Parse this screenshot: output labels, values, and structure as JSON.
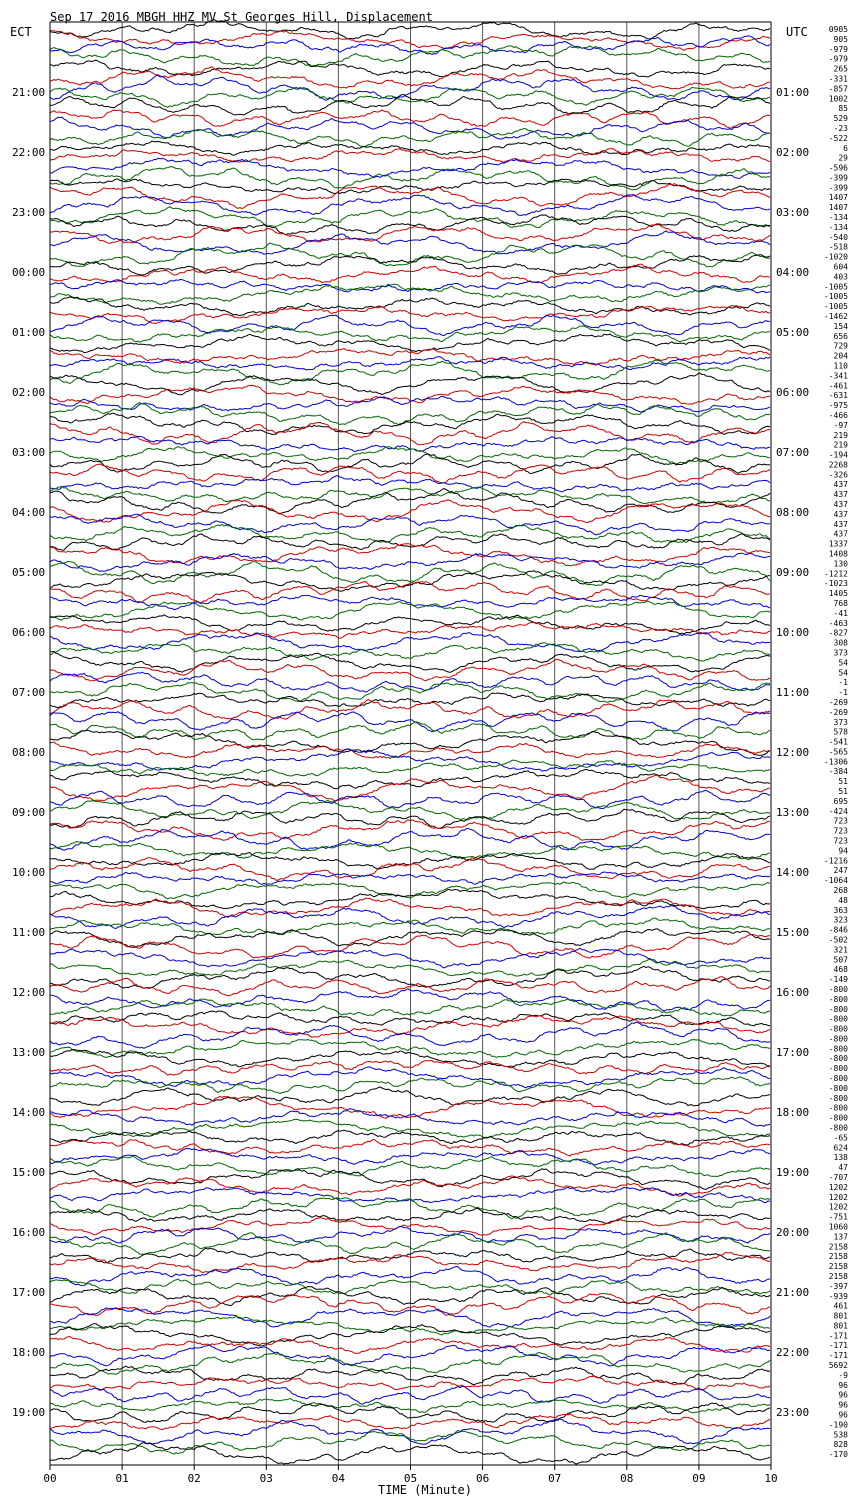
{
  "header": {
    "title": "Sep 17 2016 MBGH HHZ MV St Georges Hill, Displacement",
    "left_timezone": "ECT",
    "right_timezone": "UTC"
  },
  "chart_data": {
    "type": "line",
    "title": "Sep 17 2016 MBGH HHZ MV St Georges Hill, Displacement",
    "xlabel": "TIME (Minute)",
    "x_ticks": [
      "00",
      "01",
      "02",
      "03",
      "04",
      "05",
      "06",
      "07",
      "08",
      "09",
      "10"
    ],
    "xlim": [
      0,
      10
    ],
    "grid": true,
    "trace_colors": [
      "#000000",
      "#cc0000",
      "#0000cc",
      "#006600"
    ],
    "left_hour_labels": [
      "21:00",
      "22:00",
      "23:00",
      "00:00",
      "01:00",
      "02:00",
      "03:00",
      "04:00",
      "05:00",
      "06:00",
      "07:00",
      "08:00",
      "09:00",
      "10:00",
      "11:00",
      "12:00",
      "13:00",
      "14:00",
      "15:00",
      "16:00",
      "17:00",
      "18:00",
      "19:00"
    ],
    "right_hour_labels": [
      "01:00",
      "02:00",
      "03:00",
      "04:00",
      "05:00",
      "06:00",
      "07:00",
      "08:00",
      "09:00",
      "10:00",
      "11:00",
      "12:00",
      "13:00",
      "14:00",
      "15:00",
      "16:00",
      "17:00",
      "18:00",
      "19:00",
      "20:00",
      "21:00",
      "22:00",
      "23:00"
    ],
    "trace_offsets": [
      "0905",
      "905",
      "-979",
      "-979",
      "265",
      "-331",
      "-857",
      "1002",
      "85",
      "529",
      "-23",
      "-522",
      "6",
      "29",
      "-596",
      "-399",
      "-399",
      "1407",
      "1407",
      "-134",
      "-134",
      "-540",
      "-518",
      "-1020",
      "604",
      "403",
      "-1005",
      "-1005",
      "-1005",
      "-1462",
      "154",
      "656",
      "729",
      "204",
      "110",
      "-341",
      "-461",
      "-631",
      "-975",
      "-466",
      "-97",
      "219",
      "219",
      "-194",
      "2268",
      "-326",
      "437",
      "437",
      "437",
      "437",
      "437",
      "437",
      "1337",
      "1408",
      "130",
      "-1212",
      "-1023",
      "1405",
      "768",
      "-41",
      "-463",
      "-827",
      "308",
      "373",
      "54",
      "54",
      "-1",
      "-1",
      "-269",
      "-269",
      "373",
      "578",
      "-541",
      "-565",
      "-1306",
      "-384",
      "51",
      "51",
      "695",
      "-424",
      "723",
      "723",
      "723",
      "94",
      "-1216",
      "247",
      "-1064",
      "268",
      "48",
      "363",
      "323",
      "-846",
      "-502",
      "321",
      "507",
      "468",
      "-149",
      "-800",
      "-800",
      "-800",
      "-800",
      "-800",
      "-800",
      "-800",
      "-800",
      "-800",
      "-800",
      "-800",
      "-800",
      "-800",
      "-800",
      "-800",
      "-65",
      "624",
      "138",
      "47",
      "-707",
      "1202",
      "1202",
      "1202",
      "-751",
      "1060",
      "137",
      "2158",
      "2158",
      "2158",
      "2158",
      "-397",
      "-939",
      "461",
      "801",
      "801",
      "-171",
      "-171",
      "-171",
      "5692",
      "-9",
      "96",
      "96",
      "96",
      "96",
      "-190",
      "538",
      "828",
      "-170"
    ]
  }
}
